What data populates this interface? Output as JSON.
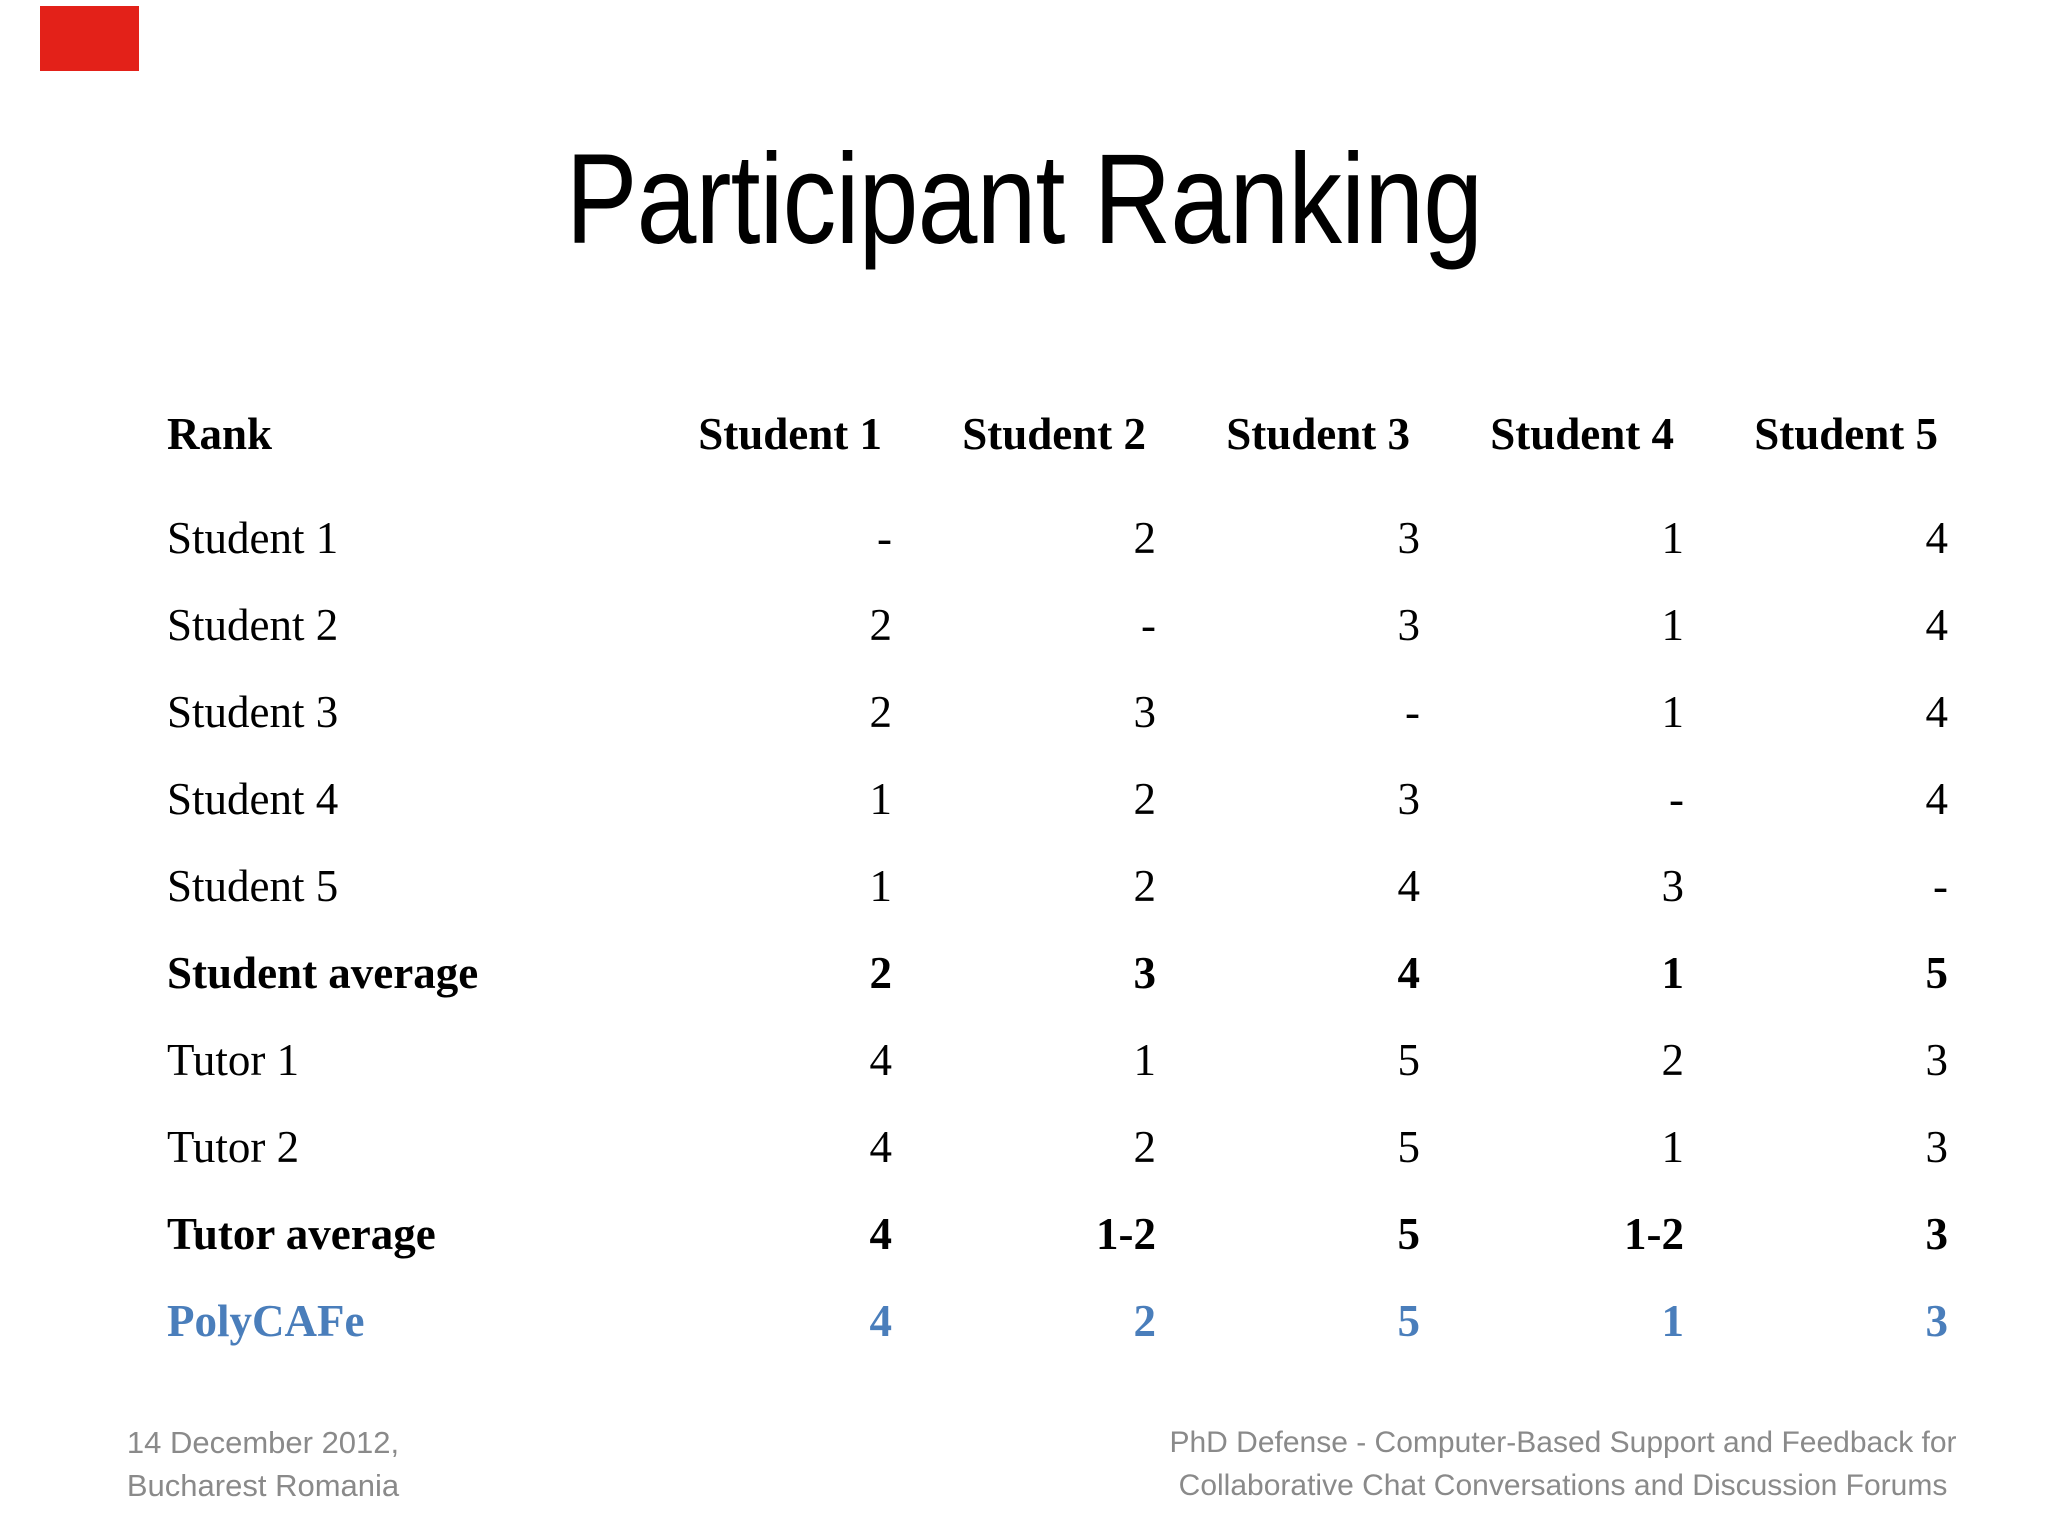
{
  "slide": {
    "title": "Participant Ranking",
    "colors": {
      "corner_mark_red": "#e32119",
      "polycafe_blue": "#4a7ebb",
      "footer_gray": "#8a8a8a",
      "text_black": "#000000",
      "background": "#ffffff"
    },
    "footer_left": {
      "line1": "14 December 2012,",
      "line2": "Bucharest Romania"
    },
    "footer_right": {
      "line1": "PhD Defense - Computer-Based Support and Feedback for",
      "line2": "Collaborative Chat Conversations and Discussion Forums"
    }
  },
  "table": {
    "columns": [
      "Rank",
      "Student 1",
      "Student 2",
      "Student 3",
      "Student 4",
      "Student 5"
    ],
    "rows": [
      {
        "label": "Student 1",
        "values": [
          "-",
          "2",
          "3",
          "1",
          "4"
        ],
        "emphasis": "normal"
      },
      {
        "label": "Student 2",
        "values": [
          "2",
          "-",
          "3",
          "1",
          "4"
        ],
        "emphasis": "normal"
      },
      {
        "label": "Student 3",
        "values": [
          "2",
          "3",
          "-",
          "1",
          "4"
        ],
        "emphasis": "normal"
      },
      {
        "label": "Student 4",
        "values": [
          "1",
          "2",
          "3",
          "-",
          "4"
        ],
        "emphasis": "normal"
      },
      {
        "label": "Student 5",
        "values": [
          "1",
          "2",
          "4",
          "3",
          "-"
        ],
        "emphasis": "normal"
      },
      {
        "label": "Student average",
        "values": [
          "2",
          "3",
          "4",
          "1",
          "5"
        ],
        "emphasis": "bold"
      },
      {
        "label": "Tutor 1",
        "values": [
          "4",
          "1",
          "5",
          "2",
          "3"
        ],
        "emphasis": "normal"
      },
      {
        "label": "Tutor 2",
        "values": [
          "4",
          "2",
          "5",
          "1",
          "3"
        ],
        "emphasis": "normal"
      },
      {
        "label": "Tutor average",
        "values": [
          "4",
          "1-2",
          "5",
          "1-2",
          "3"
        ],
        "emphasis": "bold"
      },
      {
        "label": "PolyCAFe",
        "values": [
          "4",
          "2",
          "5",
          "1",
          "3"
        ],
        "emphasis": "bold-blue"
      }
    ]
  }
}
